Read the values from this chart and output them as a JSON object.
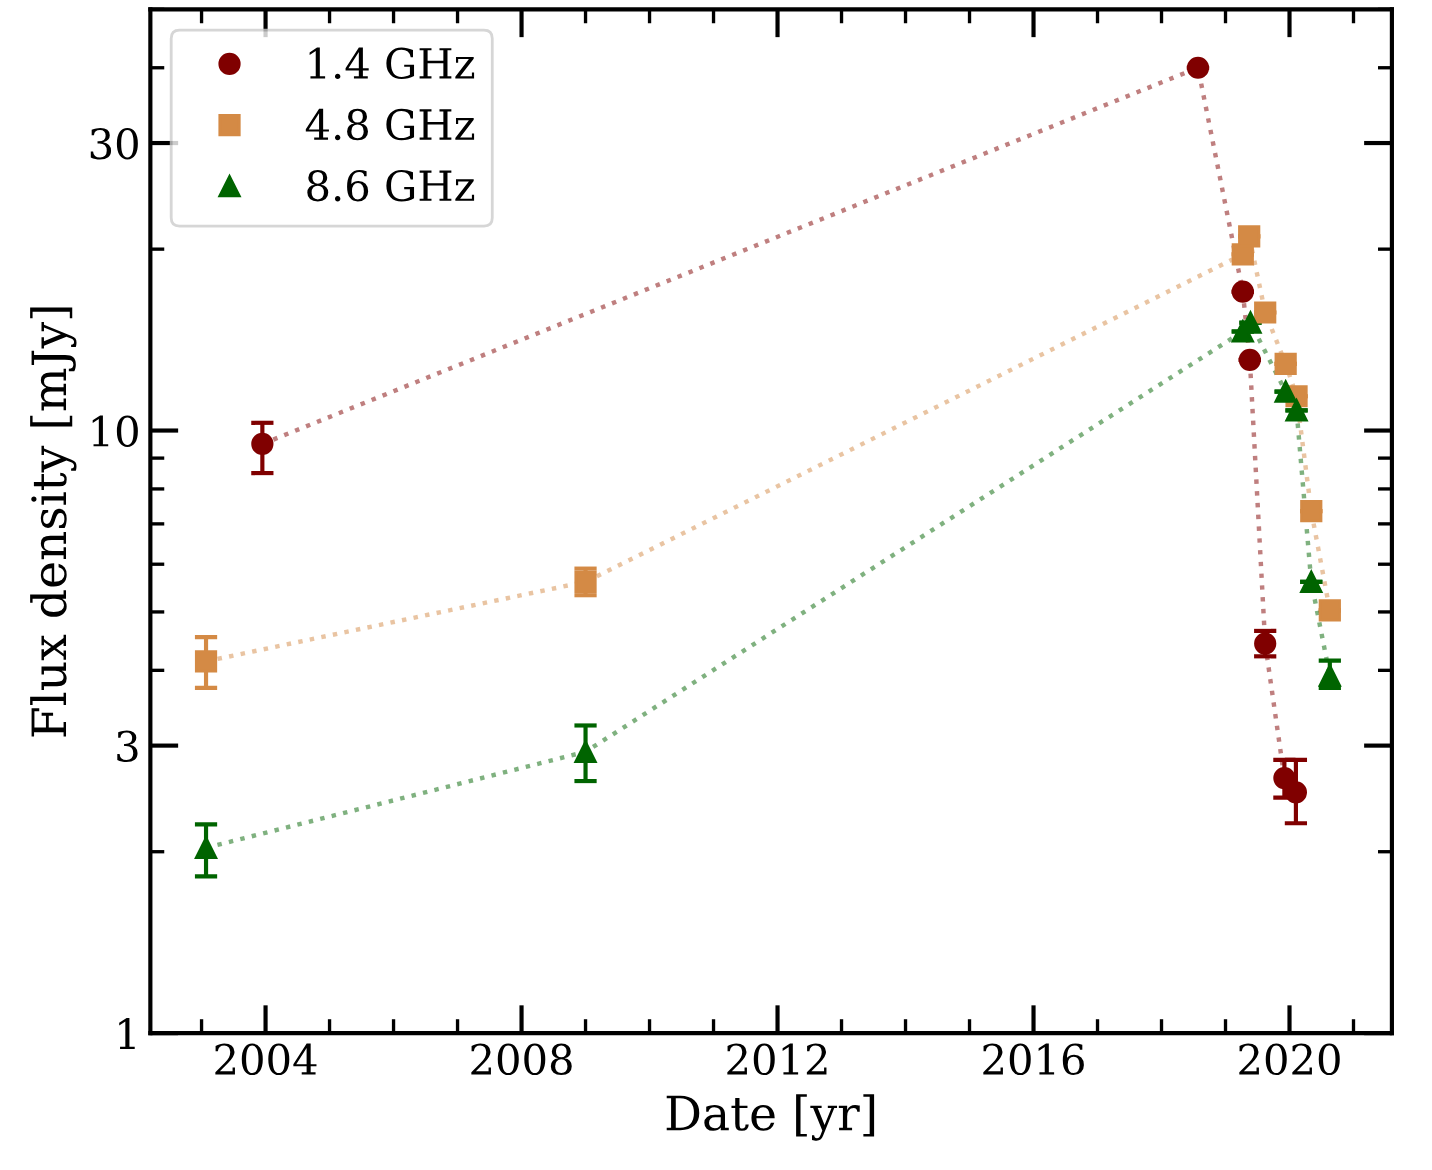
{
  "chart_data": {
    "type": "line",
    "xlabel": "Date [yr]",
    "ylabel": "Flux density [mJy]",
    "log": "y",
    "xlim": [
      2002.2,
      2021.6
    ],
    "ylim": [
      1,
      50
    ],
    "xticks": [
      2004,
      2008,
      2012,
      2016,
      2020
    ],
    "yticks": [
      1,
      3,
      10,
      30
    ],
    "grid": false,
    "legend": "top left",
    "line_style": "dotted",
    "series": [
      {
        "name": "1.4 GHz",
        "color": "#800000",
        "marker": "circle",
        "x": [
          2003.95,
          2018.57,
          2019.27,
          2019.38,
          2019.62,
          2019.92,
          2020.1
        ],
        "values": [
          9.5,
          40,
          17.0,
          13.1,
          4.43,
          2.65,
          2.51
        ],
        "errors": [
          [
            8.5,
            10.3
          ],
          null,
          null,
          null,
          [
            4.22,
            4.65
          ],
          [
            2.46,
            2.84
          ],
          [
            2.23,
            2.84
          ]
        ]
      },
      {
        "name": "4.8 GHz",
        "color": "#d48a45",
        "marker": "square",
        "x": [
          2003.07,
          2009.0,
          2019.27,
          2019.37,
          2019.62,
          2019.94,
          2020.11,
          2020.34,
          2020.63
        ],
        "values": [
          4.14,
          5.61,
          19.6,
          21.0,
          15.7,
          12.9,
          11.4,
          7.35,
          5.03
        ],
        "errors": [
          [
            3.74,
            4.54
          ],
          [
            5.33,
            5.9
          ],
          null,
          null,
          null,
          null,
          null,
          null,
          null
        ]
      },
      {
        "name": "8.6 GHz",
        "color": "#006400",
        "marker": "triangle",
        "x": [
          2003.07,
          2009.0,
          2019.27,
          2019.39,
          2019.94,
          2020.11,
          2020.34,
          2020.63
        ],
        "values": [
          2.03,
          2.93,
          14.6,
          15.1,
          11.6,
          10.8,
          5.61,
          3.92
        ],
        "errors": [
          [
            1.82,
            2.22
          ],
          [
            2.62,
            3.24
          ],
          null,
          null,
          null,
          null,
          null,
          [
            3.74,
            4.15
          ]
        ]
      }
    ]
  }
}
